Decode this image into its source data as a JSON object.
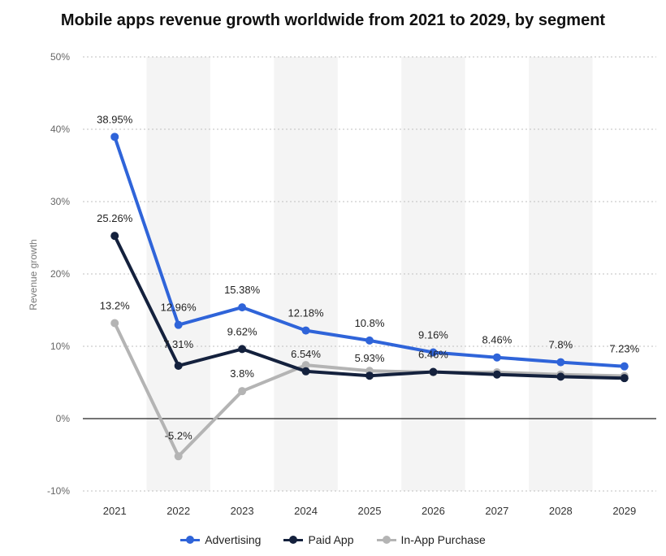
{
  "chart_data": {
    "type": "line",
    "title": "Mobile apps revenue growth worldwide from 2021 to 2029, by segment",
    "xlabel": "",
    "ylabel": "Revenue growth",
    "categories": [
      "2021",
      "2022",
      "2023",
      "2024",
      "2025",
      "2026",
      "2027",
      "2028",
      "2029"
    ],
    "ylim": [
      -10,
      50
    ],
    "yticks": [
      "50%",
      "40%",
      "30%",
      "20%",
      "10%",
      "0%",
      "-10%"
    ],
    "grid": true,
    "legend_position": "bottom",
    "series": [
      {
        "name": "Advertising",
        "color": "#2f64d9",
        "values": [
          38.95,
          12.96,
          15.38,
          12.18,
          10.8,
          9.16,
          8.46,
          7.8,
          7.23
        ],
        "labels": [
          "38.95%",
          "12.96%",
          "15.38%",
          "12.18%",
          "10.8%",
          "9.16%",
          "8.46%",
          "7.8%",
          "7.23%"
        ]
      },
      {
        "name": "Paid App",
        "color": "#14213d",
        "values": [
          25.26,
          7.31,
          9.62,
          6.54,
          5.93,
          6.46,
          6.1,
          5.8,
          5.6
        ],
        "labels": [
          "25.26%",
          "7.31%",
          "9.62%",
          "6.54%",
          "5.93%",
          "6.46%",
          "",
          "",
          ""
        ]
      },
      {
        "name": "In-App Purchase",
        "color": "#b4b4b4",
        "values": [
          13.2,
          -5.2,
          3.8,
          7.4,
          6.6,
          6.4,
          6.4,
          6.1,
          5.9
        ],
        "labels": [
          "13.2%",
          "-5.2%",
          "3.8%",
          "",
          "",
          "",
          "",
          "",
          ""
        ]
      }
    ]
  }
}
